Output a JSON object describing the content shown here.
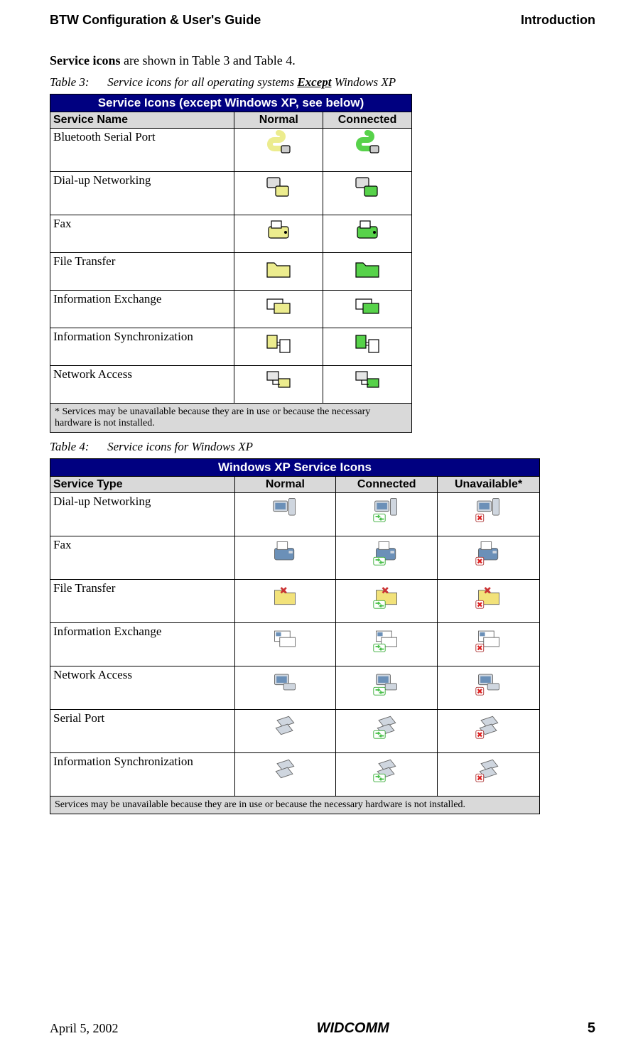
{
  "header": {
    "left": "BTW Configuration & User's Guide",
    "right": "Introduction"
  },
  "intro": {
    "bold": "Service icons",
    "rest": " are shown in Table 3 and Table 4."
  },
  "table3": {
    "caption_prefix": "Table 3:",
    "caption_mid": "      Service icons for all operating systems ",
    "caption_under": "Except",
    "caption_end": " Windows XP",
    "title": "Service Icons (except Windows XP, see below)",
    "cols": [
      "Service Name",
      "Normal",
      "Connected"
    ],
    "rows": [
      {
        "name": "Bluetooth Serial Port",
        "icon": "serial",
        "tall": true
      },
      {
        "name": "Dial-up Networking",
        "icon": "dialup",
        "tall": true
      },
      {
        "name": "Fax",
        "icon": "fax"
      },
      {
        "name": "File Transfer",
        "icon": "folder"
      },
      {
        "name": "Information Exchange",
        "icon": "infoex"
      },
      {
        "name": "Information Synchronization",
        "icon": "sync"
      },
      {
        "name": "Network Access",
        "icon": "net"
      }
    ],
    "footnote": "* Services may be unavailable because they are in use or because the necessary hardware is not installed.",
    "normal_fill": "#ecec8e",
    "connected_fill": "#57d24a"
  },
  "table4": {
    "caption_prefix": "Table 4:",
    "caption_rest": "      Service icons for Windows XP",
    "title": "Windows XP Service Icons",
    "cols": [
      "Service Type",
      "Normal",
      "Connected",
      "Unavailable*"
    ],
    "rows": [
      {
        "name": "Dial-up Networking",
        "icon": "xp-dialup"
      },
      {
        "name": "Fax",
        "icon": "xp-fax"
      },
      {
        "name": "File Transfer",
        "icon": "xp-ft"
      },
      {
        "name": "Information Exchange",
        "icon": "xp-ie"
      },
      {
        "name": "Network Access",
        "icon": "xp-na"
      },
      {
        "name": "Serial Port",
        "icon": "xp-sp"
      },
      {
        "name": "Information Synchronization",
        "icon": "xp-is"
      }
    ],
    "footnote": "Services may be unavailable because they are in use or because the necessary hardware is not installed.",
    "xp_base": "#cfd6df",
    "xp_accent": "#6b90b8",
    "xp_conn": "#4cc24c",
    "xp_unavail": "#d22"
  },
  "footer": {
    "left": "April 5, 2002",
    "center": "WIDCOMM",
    "page": "5"
  }
}
